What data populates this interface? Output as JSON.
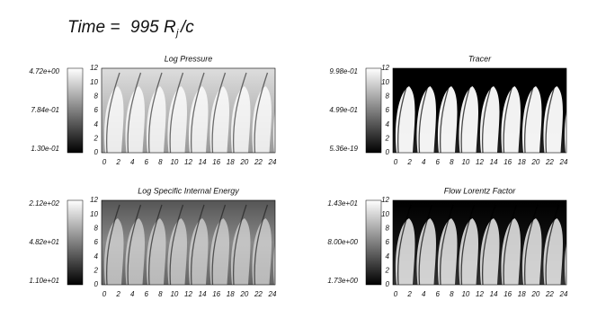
{
  "header": {
    "label": "Time = ",
    "value": "995",
    "unit": "R",
    "unit_sub": "j",
    "unit_tail": "/c"
  },
  "panels": [
    {
      "title": "Log Pressure",
      "colorbar": [
        "4.72e+00",
        "7.84e-01",
        "1.30e-01"
      ],
      "yticks": [
        0,
        2,
        4,
        6,
        8,
        10,
        12
      ],
      "xticks": [
        0,
        2,
        4,
        6,
        8,
        10,
        12,
        14,
        16,
        18,
        20,
        22,
        24
      ]
    },
    {
      "title": "Tracer",
      "colorbar": [
        "9.98e-01",
        "4.99e-01",
        "5.36e-19"
      ],
      "yticks": [
        0,
        2,
        4,
        6,
        8,
        10,
        12
      ],
      "xticks": [
        0,
        2,
        4,
        6,
        8,
        10,
        12,
        14,
        16,
        18,
        20,
        22,
        24
      ]
    },
    {
      "title": "Log Specific Internal Energy",
      "colorbar": [
        "2.12e+02",
        "4.82e+01",
        "1.10e+01"
      ],
      "yticks": [
        0,
        2,
        4,
        6,
        8,
        10,
        12
      ],
      "xticks": [
        0,
        2,
        4,
        6,
        8,
        10,
        12,
        14,
        16,
        18,
        20,
        22,
        24
      ]
    },
    {
      "title": "Flow Lorentz Factor",
      "colorbar": [
        "1.43e+01",
        "8.00e+00",
        "1.73e+00"
      ],
      "yticks": [
        0,
        2,
        4,
        6,
        8,
        10,
        12
      ],
      "xticks": [
        0,
        2,
        4,
        6,
        8,
        10,
        12,
        14,
        16,
        18,
        20,
        22,
        24
      ]
    }
  ]
}
